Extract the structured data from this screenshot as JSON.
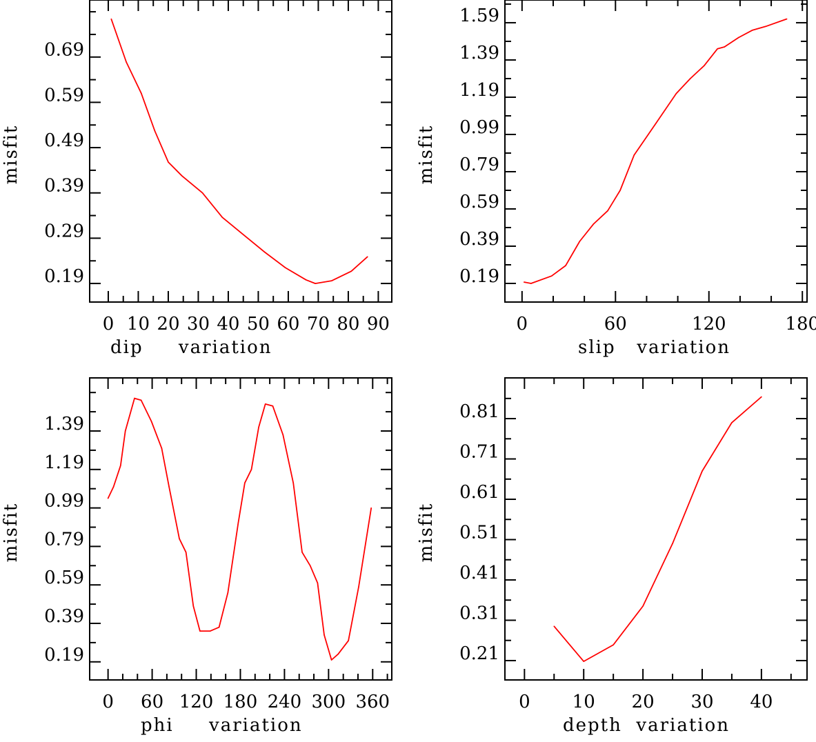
{
  "chart_data": [
    {
      "type": "line",
      "title": "",
      "xlabel": "dip     variation",
      "ylabel": "misfit",
      "xlim": [
        -6.2,
        94.5
      ],
      "ylim": [
        0.149,
        0.816
      ],
      "xticks": [
        0,
        10,
        20,
        30,
        40,
        50,
        60,
        70,
        80,
        90
      ],
      "xtick_labels": [
        "0",
        "10",
        "20",
        "30",
        "40",
        "50",
        "60",
        "70",
        "80",
        "90"
      ],
      "xminor": 5,
      "yticks": [
        0.19,
        0.29,
        0.39,
        0.49,
        0.59,
        0.69
      ],
      "ytick_labels": [
        "0.19",
        "0.29",
        "0.39",
        "0.49",
        "0.59",
        "0.69"
      ],
      "yminor": 0.05,
      "grid": false,
      "color": "#ff0000",
      "series": [
        {
          "name": "dip",
          "x": [
            1,
            6,
            11,
            15.5,
            20,
            24.5,
            31.4,
            38,
            45,
            52,
            59,
            65.9,
            69,
            74.5,
            81,
            86.4
          ],
          "y": [
            0.774,
            0.679,
            0.61,
            0.527,
            0.458,
            0.428,
            0.39,
            0.336,
            0.298,
            0.26,
            0.225,
            0.198,
            0.19,
            0.196,
            0.217,
            0.249
          ]
        }
      ]
    },
    {
      "type": "line",
      "title": "",
      "xlabel": "slip   variation",
      "ylabel": "misfit",
      "xlim": [
        -11,
        183
      ],
      "ylim": [
        0.09,
        1.712
      ],
      "xticks": [
        0,
        60,
        120,
        180
      ],
      "xtick_labels": [
        "0",
        "60",
        "120",
        "180"
      ],
      "xminor": 20,
      "yticks": [
        0.19,
        0.39,
        0.59,
        0.79,
        0.99,
        1.19,
        1.39,
        1.59
      ],
      "ytick_labels": [
        "0.19",
        "0.39",
        "0.59",
        "0.79",
        "0.99",
        "1.19",
        "1.39",
        "1.59"
      ],
      "yminor": 0.1,
      "grid": false,
      "color": "#ff0000",
      "series": [
        {
          "name": "slip",
          "x": [
            1.3,
            5.8,
            19,
            28,
            37,
            46,
            55,
            63,
            72,
            86,
            99,
            108,
            117,
            125.5,
            130,
            139,
            148,
            156.5,
            170
          ],
          "y": [
            0.197,
            0.19,
            0.23,
            0.286,
            0.416,
            0.51,
            0.58,
            0.69,
            0.88,
            1.05,
            1.21,
            1.29,
            1.36,
            1.45,
            1.46,
            1.51,
            1.55,
            1.57,
            1.61
          ]
        }
      ]
    },
    {
      "type": "line",
      "title": "",
      "xlabel": "phi     variation",
      "ylabel": "misfit",
      "xlim": [
        -25,
        386
      ],
      "ylim": [
        0.096,
        1.666
      ],
      "xticks": [
        0,
        60,
        120,
        180,
        240,
        300,
        360
      ],
      "xtick_labels": [
        "0",
        "60",
        "120",
        "180",
        "240",
        "300",
        "360"
      ],
      "xminor": 20,
      "yticks": [
        0.19,
        0.39,
        0.59,
        0.79,
        0.99,
        1.19,
        1.39
      ],
      "ytick_labels": [
        "0.19",
        "0.39",
        "0.59",
        "0.79",
        "0.99",
        "1.19",
        "1.39"
      ],
      "yminor": 0.1,
      "grid": false,
      "color": "#ff0000",
      "series": [
        {
          "name": "phi",
          "x": [
            0,
            7.5,
            17,
            23.5,
            36,
            45,
            59,
            73,
            83,
            97,
            106,
            116,
            125,
            139,
            151,
            163,
            177,
            186,
            195,
            205,
            214,
            224,
            238,
            252,
            264,
            275,
            285,
            294,
            304,
            313,
            327,
            341,
            358
          ],
          "y": [
            1.04,
            1.1,
            1.21,
            1.39,
            1.56,
            1.55,
            1.44,
            1.3,
            1.1,
            0.83,
            0.76,
            0.48,
            0.35,
            0.35,
            0.37,
            0.55,
            0.91,
            1.12,
            1.19,
            1.41,
            1.53,
            1.52,
            1.37,
            1.12,
            0.76,
            0.69,
            0.6,
            0.33,
            0.2,
            0.23,
            0.3,
            0.58,
            0.99
          ]
        }
      ]
    },
    {
      "type": "line",
      "title": "",
      "xlabel": "depth  variation",
      "ylabel": "misfit",
      "xlim": [
        -3.3,
        47.7
      ],
      "ylim": [
        0.162,
        0.911
      ],
      "xticks": [
        0,
        10,
        20,
        30,
        40
      ],
      "xtick_labels": [
        "0",
        "10",
        "20",
        "30",
        "40"
      ],
      "xminor": 5,
      "yticks": [
        0.21,
        0.31,
        0.41,
        0.51,
        0.61,
        0.71,
        0.81
      ],
      "ytick_labels": [
        "0.21",
        "0.31",
        "0.41",
        "0.51",
        "0.61",
        "0.71",
        "0.81"
      ],
      "yminor": 0.05,
      "grid": false,
      "color": "#ff0000",
      "series": [
        {
          "name": "depth",
          "x": [
            5,
            10,
            15,
            20,
            25,
            30,
            35,
            40
          ],
          "y": [
            0.295,
            0.208,
            0.249,
            0.345,
            0.5,
            0.68,
            0.8,
            0.864
          ]
        }
      ]
    }
  ]
}
